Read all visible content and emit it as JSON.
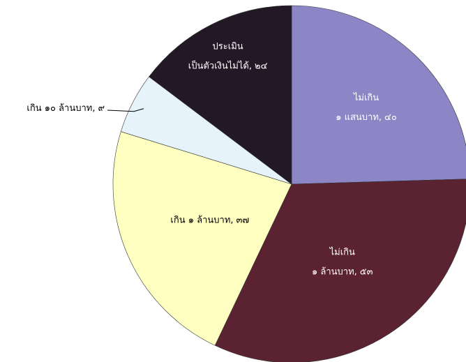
{
  "chart_data": {
    "type": "pie",
    "categories": [
      [
        "ไม่เกิน",
        "๑ แสนบาท,"
      ],
      [
        "ไม่เกิน",
        "๑ ล้านบาท,"
      ],
      [
        "เกิน ๑ ล้านบาท,"
      ],
      [
        "เกิน ๑๐ ล้านบาท,"
      ],
      [
        "ประเมิน",
        "เป็นตัวเงินไม่ได้,"
      ]
    ],
    "values": [
      40,
      53,
      37,
      9,
      24
    ],
    "value_labels": [
      "๔๐",
      "๕๓",
      "๓๗",
      "๙",
      "๒๔"
    ],
    "colors": [
      "#8c86c6",
      "#5b2231",
      "#ffffc2",
      "#e6f3fa",
      "#221826"
    ]
  }
}
